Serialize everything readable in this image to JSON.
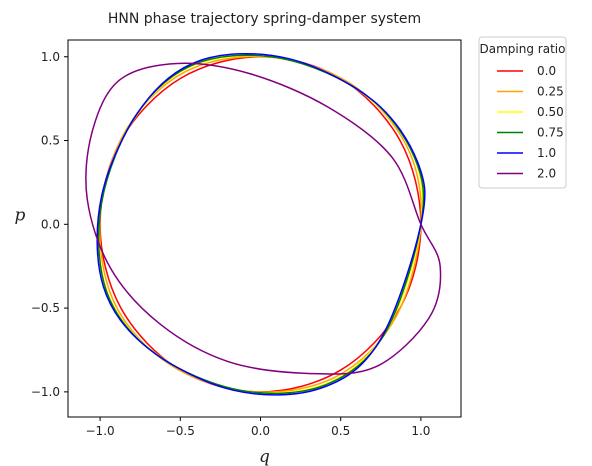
{
  "chart_data": {
    "type": "line",
    "title": "HNN phase trajectory spring-damper system",
    "xlabel": "q",
    "ylabel": "p",
    "xlim": [
      -1.2,
      1.25
    ],
    "ylim": [
      -1.15,
      1.1
    ],
    "xticks": [
      -1.0,
      -0.5,
      0.0,
      0.5,
      1.0
    ],
    "xtick_labels": [
      "−1.0",
      "−0.5",
      "0.0",
      "0.5",
      "1.0"
    ],
    "yticks": [
      -1.0,
      -0.5,
      0.0,
      0.5,
      1.0
    ],
    "ytick_labels": [
      "−1.0",
      "−0.5",
      "0.0",
      "0.5",
      "1.0"
    ],
    "grid": false,
    "legend": {
      "title": "Damping ratio",
      "placement": "outside-top-right"
    },
    "series": [
      {
        "name": "0.0",
        "color": "#ff0000",
        "points": [
          [
            1.0,
            0.0
          ],
          [
            0.87,
            0.5
          ],
          [
            0.5,
            0.87
          ],
          [
            0.0,
            1.0
          ],
          [
            -0.5,
            0.87
          ],
          [
            -0.87,
            0.5
          ],
          [
            -1.0,
            0.0
          ],
          [
            -0.87,
            -0.5
          ],
          [
            -0.5,
            -0.87
          ],
          [
            0.0,
            -1.0
          ],
          [
            0.5,
            -0.87
          ],
          [
            0.87,
            -0.5
          ]
        ]
      },
      {
        "name": "0.25",
        "color": "#ffa500",
        "points": [
          [
            1.0,
            0.0
          ],
          [
            0.91,
            0.47
          ],
          [
            0.56,
            0.84
          ],
          [
            0.05,
            0.999
          ],
          [
            -0.47,
            0.91
          ],
          [
            -0.84,
            0.56
          ],
          [
            -1.0,
            0.05
          ],
          [
            -0.91,
            -0.47
          ],
          [
            -0.56,
            -0.84
          ],
          [
            -0.05,
            -0.999
          ],
          [
            0.47,
            -0.91
          ],
          [
            0.84,
            -0.56
          ]
        ]
      },
      {
        "name": "0.50",
        "color": "#ffff00",
        "points": [
          [
            1.0,
            0.0
          ],
          [
            0.94,
            0.44
          ],
          [
            0.61,
            0.8
          ],
          [
            0.09,
            0.996
          ],
          [
            -0.44,
            0.94
          ],
          [
            -0.8,
            0.61
          ],
          [
            -1.0,
            0.09
          ],
          [
            -0.94,
            -0.44
          ],
          [
            -0.61,
            -0.8
          ],
          [
            -0.09,
            -0.996
          ],
          [
            0.44,
            -0.94
          ],
          [
            0.8,
            -0.61
          ]
        ]
      },
      {
        "name": "0.75",
        "color": "#008000",
        "points": [
          [
            1.0,
            0.0
          ],
          [
            0.96,
            0.4
          ],
          [
            0.66,
            0.77
          ],
          [
            0.13,
            0.99
          ],
          [
            -0.4,
            0.96
          ],
          [
            -0.77,
            0.66
          ],
          [
            -0.99,
            0.13
          ],
          [
            -0.96,
            -0.4
          ],
          [
            -0.66,
            -0.77
          ],
          [
            -0.13,
            -0.99
          ],
          [
            0.4,
            -0.96
          ],
          [
            0.77,
            -0.66
          ]
        ]
      },
      {
        "name": "1.0",
        "color": "#0000ff",
        "points": [
          [
            1.0,
            0.0
          ],
          [
            0.98,
            0.37
          ],
          [
            0.7,
            0.74
          ],
          [
            0.17,
            0.99
          ],
          [
            -0.37,
            0.98
          ],
          [
            -0.74,
            0.7
          ],
          [
            -0.99,
            0.17
          ],
          [
            -0.98,
            -0.37
          ],
          [
            -0.7,
            -0.74
          ],
          [
            -0.17,
            -0.99
          ],
          [
            0.37,
            -0.98
          ],
          [
            0.74,
            -0.7
          ]
        ]
      },
      {
        "name": "2.0",
        "color": "#800080",
        "points": [
          [
            1.0,
            0.0
          ],
          [
            1.12,
            -0.25
          ],
          [
            1.05,
            -0.56
          ],
          [
            0.72,
            -0.85
          ],
          [
            0.3,
            -0.89
          ],
          [
            -0.2,
            -0.82
          ],
          [
            -0.62,
            -0.6
          ],
          [
            -0.93,
            -0.27
          ],
          [
            -1.08,
            0.15
          ],
          [
            -1.05,
            0.55
          ],
          [
            -0.88,
            0.86
          ],
          [
            -0.52,
            0.96
          ],
          [
            -0.07,
            0.9
          ],
          [
            0.42,
            0.7
          ],
          [
            0.82,
            0.4
          ]
        ]
      }
    ]
  }
}
